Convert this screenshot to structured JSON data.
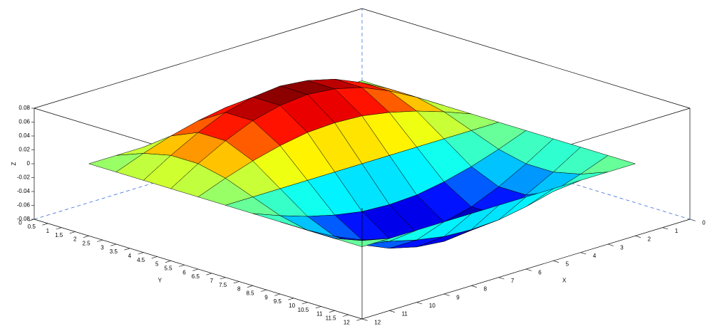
{
  "chart_data": {
    "type": "surface",
    "colormap": "jet",
    "x": [
      1,
      2,
      3,
      4,
      5,
      6,
      7,
      8,
      9,
      10,
      11
    ],
    "y": [
      1,
      2,
      3,
      4,
      5,
      6,
      7,
      8,
      9,
      10,
      11
    ],
    "z": [
      [
        0,
        0,
        0,
        0,
        0,
        0,
        0,
        0,
        0,
        0,
        0
      ],
      [
        0,
        0.015,
        0.028,
        0.038,
        0.045,
        0.047,
        0.045,
        0.038,
        0.028,
        0.015,
        0
      ],
      [
        0,
        0.024,
        0.045,
        0.062,
        0.072,
        0.076,
        0.072,
        0.062,
        0.045,
        0.024,
        0
      ],
      [
        0,
        0.024,
        0.045,
        0.062,
        0.072,
        0.076,
        0.072,
        0.062,
        0.045,
        0.024,
        0
      ],
      [
        0,
        0.015,
        0.028,
        0.038,
        0.045,
        0.047,
        0.045,
        0.038,
        0.028,
        0.015,
        0
      ],
      [
        0,
        0,
        0,
        0,
        0,
        0,
        0,
        0,
        0,
        0,
        0
      ],
      [
        0,
        -0.015,
        -0.028,
        -0.038,
        -0.045,
        -0.047,
        -0.045,
        -0.038,
        -0.028,
        -0.015,
        0
      ],
      [
        0,
        -0.024,
        -0.045,
        -0.062,
        -0.072,
        -0.076,
        -0.072,
        -0.062,
        -0.045,
        -0.024,
        0
      ],
      [
        0,
        -0.024,
        -0.045,
        -0.062,
        -0.072,
        -0.076,
        -0.072,
        -0.062,
        -0.045,
        -0.024,
        0
      ],
      [
        0,
        -0.015,
        -0.028,
        -0.038,
        -0.045,
        -0.047,
        -0.045,
        -0.038,
        -0.028,
        -0.015,
        0
      ],
      [
        0,
        0,
        0,
        0,
        0,
        0,
        0,
        0,
        0,
        0,
        0
      ]
    ],
    "xlim": [
      0,
      12
    ],
    "ylim": [
      0,
      12
    ],
    "zlim": [
      -0.08,
      0.08
    ],
    "xticks": [
      0,
      1,
      2,
      3,
      4,
      5,
      6,
      7,
      8,
      9,
      10,
      11,
      12
    ],
    "yticks": [
      0,
      0.5,
      1,
      1.5,
      2,
      2.5,
      3,
      3.5,
      4,
      4.5,
      5,
      5.5,
      6,
      6.5,
      7,
      7.5,
      8,
      8.5,
      9,
      9.5,
      10,
      10.5,
      11,
      11.5,
      12
    ],
    "zticks": [
      -0.08,
      -0.06,
      -0.04,
      -0.02,
      0,
      0.02,
      0.04,
      0.06,
      0.08
    ],
    "xlabel": "X",
    "ylabel": "Y",
    "zlabel": "Z"
  }
}
